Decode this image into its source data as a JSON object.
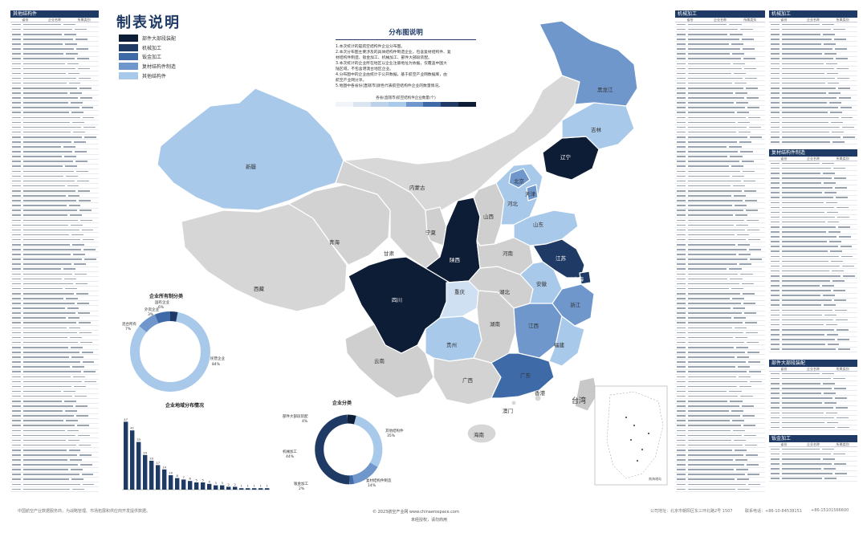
{
  "title": "制表说明",
  "legend": [
    {
      "label": "部件大部段装配",
      "color": "#0e1d36"
    },
    {
      "label": "机械加工",
      "color": "#1f3a64"
    },
    {
      "label": "钣金加工",
      "color": "#3f6aa8"
    },
    {
      "label": "复材结构件制造",
      "color": "#6f97cc"
    },
    {
      "label": "其他结构件",
      "color": "#a9c9ea"
    }
  ],
  "description": {
    "title": "分布图说明",
    "lines": [
      "1.本次统计的是航空结构件企业分布图。",
      "2.本次分布图主要涉及的具体结构件制造企业，包含复材结构件、复",
      "材结构件制造、钣金加工、机械加工、部件大部段装配。",
      "3.本次统计的企业所在地区以企业注册地址为依据，仅覆盖中国大",
      "陆区域，不包含港澳台地区企业。",
      "4.分布图中的企业由统计于公开数据，基于航空产业网数据库，由",
      "航空产业网分享。",
      "5.地图中各省份(直辖市)颜色代表航空结构件企业的数量情况。"
    ],
    "scale_title": "各省(直辖市)航空结构件企业数量(个)"
  },
  "map": {
    "provinces": [
      {
        "name": "黑龙江",
        "fill": "#6f97cc"
      },
      {
        "name": "吉林",
        "fill": "#a9c9ea"
      },
      {
        "name": "辽宁",
        "fill": "#0e1d36"
      },
      {
        "name": "内蒙古",
        "fill": "#d8d8d8"
      },
      {
        "name": "北京",
        "fill": "#6f97cc"
      },
      {
        "name": "天津",
        "fill": "#6f97cc"
      },
      {
        "name": "河北",
        "fill": "#a9c9ea"
      },
      {
        "name": "山西",
        "fill": "#cfcfcf"
      },
      {
        "name": "新疆",
        "fill": "#a9c9ea"
      },
      {
        "name": "青海",
        "fill": "#d2d2d2"
      },
      {
        "name": "西藏",
        "fill": "#d6d6d6"
      },
      {
        "name": "宁夏",
        "fill": "#cfcfcf"
      },
      {
        "name": "甘肃",
        "fill": "#d3d3d3"
      },
      {
        "name": "陕西",
        "fill": "#0e1d36"
      },
      {
        "name": "四川",
        "fill": "#0e1d36"
      },
      {
        "name": "山东",
        "fill": "#a9c9ea"
      },
      {
        "name": "河南",
        "fill": "#d0d0d0"
      },
      {
        "name": "江苏",
        "fill": "#1f3a64"
      },
      {
        "name": "上海",
        "fill": "#1f3a64"
      },
      {
        "name": "安徽",
        "fill": "#a9c9ea"
      },
      {
        "name": "湖北",
        "fill": "#d0d0d0"
      },
      {
        "name": "重庆",
        "fill": "#cfe0f3"
      },
      {
        "name": "浙江",
        "fill": "#6f97cc"
      },
      {
        "name": "湖南",
        "fill": "#d0d0d0"
      },
      {
        "name": "江西",
        "fill": "#6f97cc"
      },
      {
        "name": "贵州",
        "fill": "#a9c9ea"
      },
      {
        "name": "福建",
        "fill": "#a9c9ea"
      },
      {
        "name": "云南",
        "fill": "#cfcfcf"
      },
      {
        "name": "广西",
        "fill": "#d3d3d3"
      },
      {
        "name": "广东",
        "fill": "#3f6aa8"
      },
      {
        "name": "香港",
        "fill": "#d6d6d6"
      },
      {
        "name": "澳门",
        "fill": "#d6d6d6"
      },
      {
        "name": "台湾",
        "fill": "#c8c8c8"
      },
      {
        "name": "海南",
        "fill": "#d6d6d6"
      }
    ],
    "inset_label": "南海诸岛"
  },
  "charts": {
    "ownership": {
      "title": "企业所有制分类",
      "labels": [
        {
          "text": "外资企业",
          "value": "3%"
        },
        {
          "text": "国有企业",
          "value": "6%"
        },
        {
          "text": "混合所有",
          "value": "7%"
        },
        {
          "text": "民营企业",
          "value": "84%"
        }
      ]
    },
    "categories": {
      "title": "企业分类",
      "labels": [
        {
          "text": "部件大部段装配",
          "value": "4%"
        },
        {
          "text": "其他结构件",
          "value": "35%"
        },
        {
          "text": "机械加工",
          "value": "44%"
        },
        {
          "text": "复材结构件制造",
          "value": "14%"
        },
        {
          "text": "钣金加工",
          "value": "2%"
        }
      ]
    },
    "regions": {
      "title": "企业地域分布情况"
    }
  },
  "chart_data": [
    {
      "type": "pie",
      "title": "企业所有制分类",
      "categories": [
        "民营企业",
        "混合所有",
        "国有企业",
        "外资企业"
      ],
      "values": [
        84,
        7,
        6,
        3
      ]
    },
    {
      "type": "pie",
      "title": "企业分类",
      "categories": [
        "其他结构件",
        "机械加工",
        "复材结构件制造",
        "部件大部段装配",
        "钣金加工"
      ],
      "values": [
        35,
        44,
        14,
        4,
        2
      ]
    },
    {
      "type": "bar",
      "title": "企业地域分布情况",
      "values": [
        47,
        41,
        33,
        24,
        20,
        17,
        14,
        10,
        8,
        7,
        6,
        5,
        5,
        4,
        3,
        3,
        2,
        2,
        1,
        1,
        1,
        1,
        1
      ],
      "ylim": [
        0,
        50
      ]
    }
  ],
  "tables": {
    "left": {
      "header": "其他结构件",
      "cols": [
        "省份",
        "企业名称",
        "所属类别"
      ]
    },
    "mid1": {
      "header": "机械加工",
      "cols": [
        "省份",
        "企业名称",
        "所属类别"
      ]
    },
    "right1": {
      "header": "机械加工",
      "cols": [
        "省份",
        "企业名称",
        "所属类别"
      ]
    },
    "right2": {
      "header": "复材结构件制造",
      "cols": [
        "省份",
        "企业名称",
        "所属类别"
      ]
    },
    "right3": {
      "header": "部件大部段装配",
      "cols": [
        "省份",
        "企业名称",
        "所属类别"
      ]
    },
    "right4": {
      "header": "钣金加工",
      "cols": [
        "省份",
        "企业名称",
        "所属类别"
      ]
    }
  },
  "footer": {
    "left": "中国航空产业数据服务商，为战略管理、市场拓展和供应商开发提供数据。",
    "center1": "© 2023航空产业网 www.chinaerospace.com",
    "center2": "未经授权，请勿商用",
    "address": "公司地址：北京市朝阳区东三环北路2号 1507",
    "phone": "联系电话：+86-10-84538151",
    "mobile": "+86-15101566600"
  }
}
